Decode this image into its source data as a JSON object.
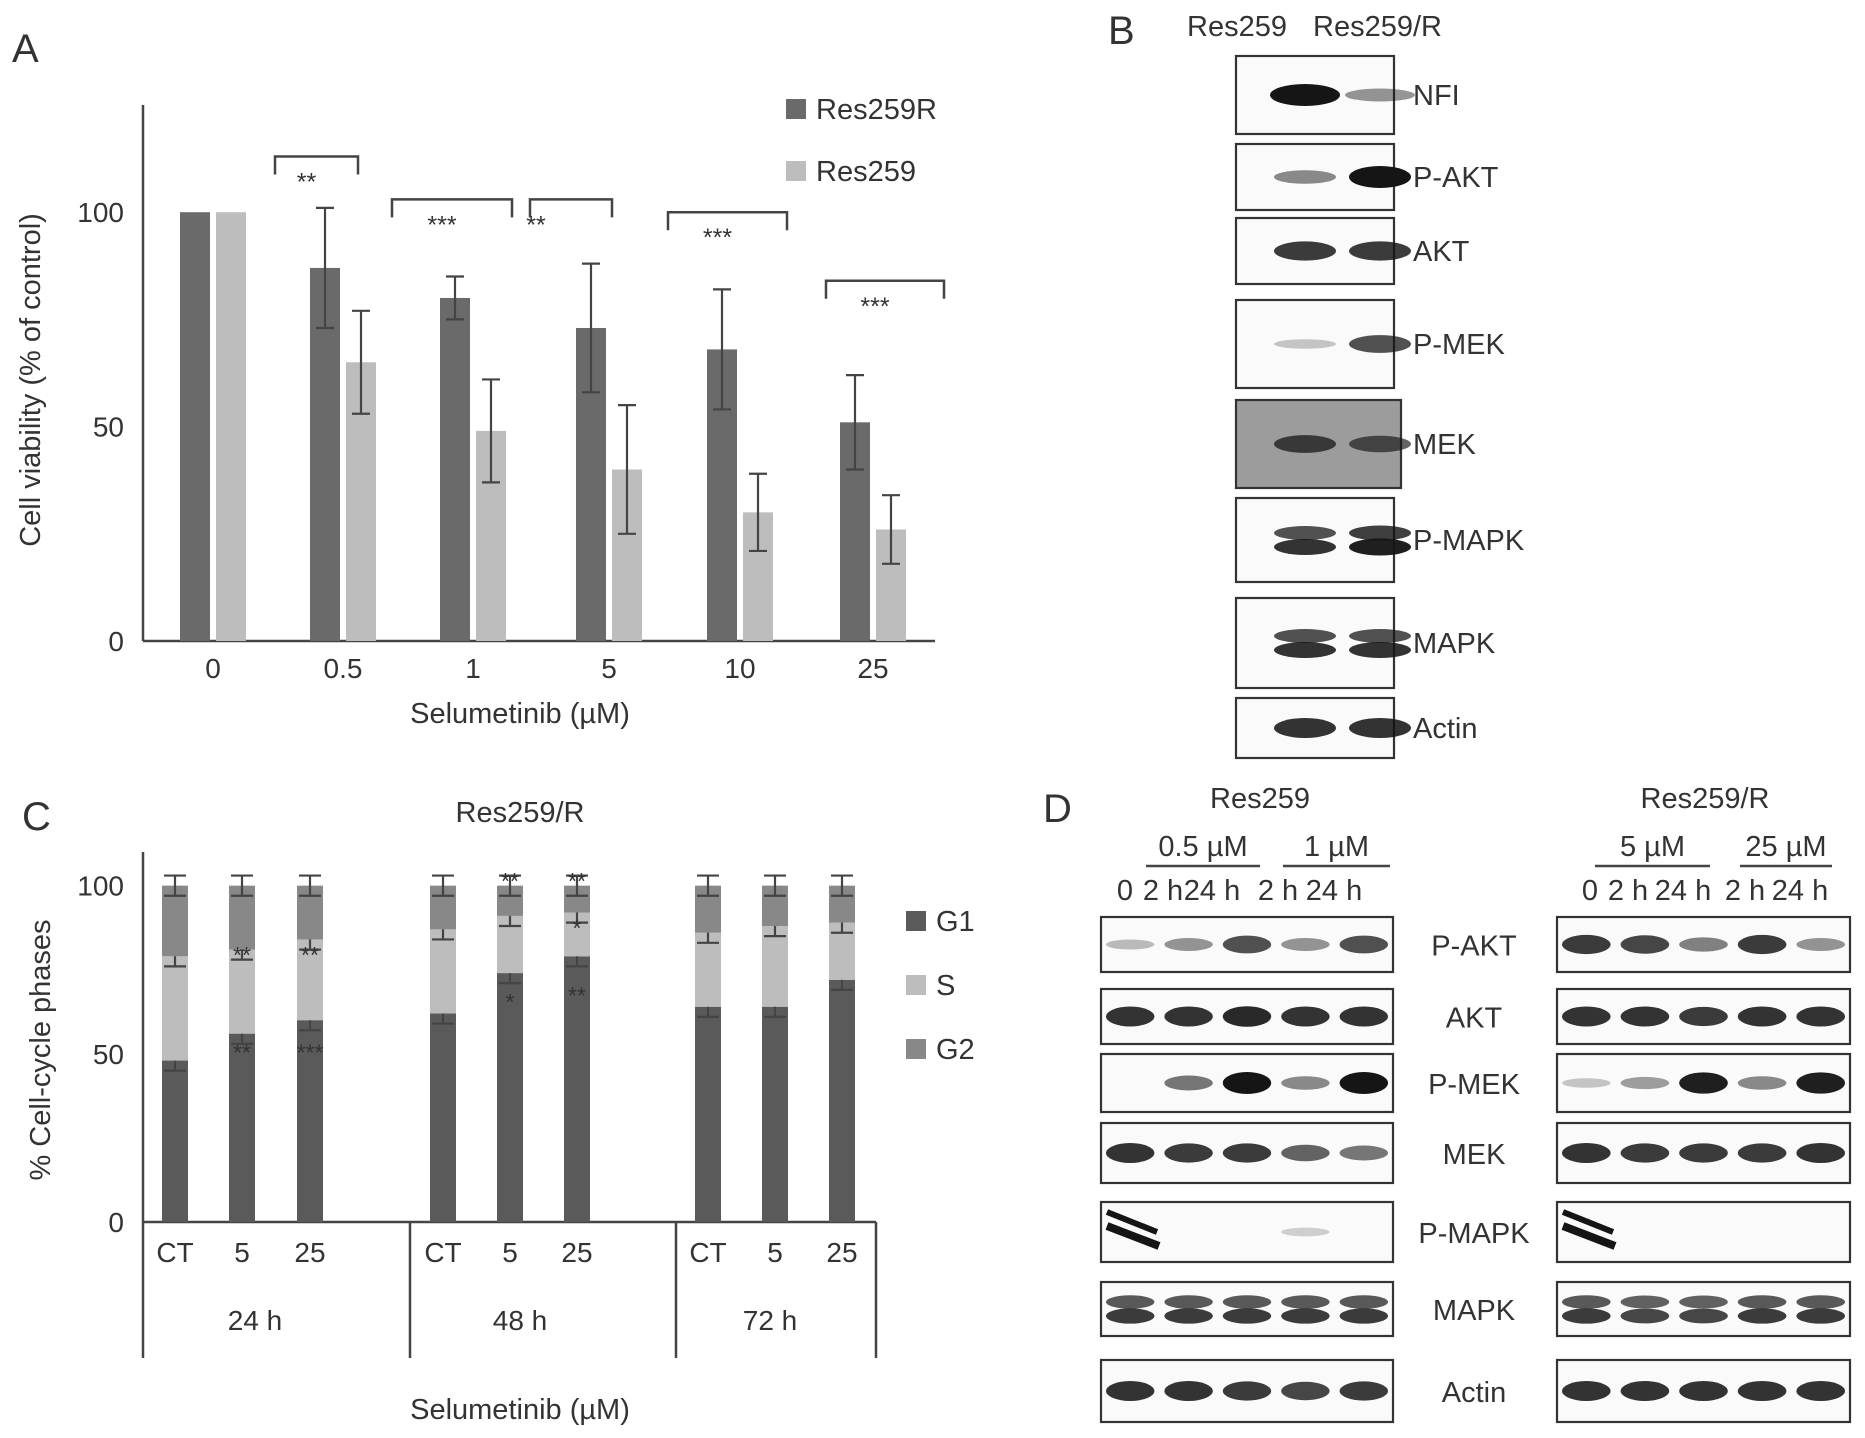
{
  "panels": {
    "A": {
      "letter": "A",
      "chart_data": {
        "type": "bar",
        "categories": [
          "0",
          "0.5",
          "1",
          "5",
          "10",
          "25"
        ],
        "series": [
          {
            "name": "Res259R",
            "color": "#6a6a6a",
            "values": [
              100,
              87,
              80,
              73,
              68,
              51
            ],
            "errors": [
              0,
              14,
              5,
              15,
              14,
              11
            ]
          },
          {
            "name": "Res259",
            "color": "#bdbdbd",
            "values": [
              100,
              65,
              49,
              40,
              30,
              26
            ],
            "errors": [
              0,
              12,
              12,
              15,
              9,
              8
            ]
          }
        ],
        "xlabel": "Selumetinib (µM)",
        "ylabel": "Cell viability (% of control)",
        "yticks": [
          0,
          50,
          100
        ],
        "ylim": [
          0,
          125
        ],
        "legend": "top-right",
        "significance": [
          {
            "from": 1,
            "to": 1,
            "label": "**",
            "y": 113
          },
          {
            "from": 2,
            "to": 3,
            "label": "***",
            "y": 103
          },
          {
            "from": 3,
            "to": 4,
            "label": "**",
            "y": 103
          },
          {
            "from": 4,
            "to": 5,
            "label": "***",
            "y": 100
          },
          {
            "from": 5,
            "to": 6,
            "label": "***",
            "y": 84
          }
        ]
      }
    },
    "B": {
      "letter": "B",
      "lanes": [
        "Res259",
        "Res259/R"
      ],
      "blots": [
        {
          "label": "NFI",
          "bands": [
            1.0,
            0.35
          ]
        },
        {
          "label": "P-AKT",
          "bands": [
            0.4,
            1.0
          ]
        },
        {
          "label": "AKT",
          "bands": [
            0.8,
            0.8
          ]
        },
        {
          "label": "P-MEK",
          "bands": [
            0.1,
            0.7
          ]
        },
        {
          "label": "MEK",
          "bands": [
            0.7,
            0.6
          ]
        },
        {
          "label": "P-MAPK",
          "bands": [
            0.85,
            0.95
          ]
        },
        {
          "label": "MAPK",
          "bands": [
            0.85,
            0.85
          ]
        },
        {
          "label": "Actin",
          "bands": [
            0.85,
            0.85
          ]
        }
      ]
    },
    "C": {
      "letter": "C",
      "chart_data": {
        "type": "bar",
        "stacked": true,
        "title": "Res259/R",
        "ylabel": "% Cell-cycle phases",
        "xlabel": "Selumetinib (µM)",
        "yticks": [
          0,
          50,
          100
        ],
        "ylim": [
          0,
          110
        ],
        "categories": [
          "CT",
          "5",
          "25",
          "CT",
          "5",
          "25",
          "CT",
          "5",
          "25"
        ],
        "groups": [
          "24 h",
          "48 h",
          "72 h"
        ],
        "series": [
          {
            "name": "G1",
            "color": "#5a5a5a",
            "values": [
              48,
              56,
              60,
              62,
              74,
              79,
              64,
              64,
              72
            ]
          },
          {
            "name": "S",
            "color": "#bdbdbd",
            "values": [
              31,
              25,
              24,
              25,
              17,
              13,
              22,
              24,
              17
            ]
          },
          {
            "name": "G2",
            "color": "#888888",
            "values": [
              21,
              19,
              16,
              13,
              9,
              8,
              14,
              12,
              11
            ]
          }
        ],
        "annotations": [
          {
            "index": 1,
            "y": 80,
            "label": "**"
          },
          {
            "index": 1,
            "y": 51,
            "label": "**"
          },
          {
            "index": 2,
            "y": 80,
            "label": "**"
          },
          {
            "index": 2,
            "y": 51,
            "label": "***"
          },
          {
            "index": 4,
            "y": 102,
            "label": "**"
          },
          {
            "index": 4,
            "y": 66,
            "label": "*"
          },
          {
            "index": 5,
            "y": 102,
            "label": "**"
          },
          {
            "index": 5,
            "y": 88,
            "label": "*"
          },
          {
            "index": 5,
            "y": 68,
            "label": "**"
          }
        ],
        "legend": "right"
      }
    },
    "D": {
      "letter": "D",
      "left": {
        "title": "Res259",
        "doses": [
          "0.5 µM",
          "1 µM"
        ],
        "lanes": [
          "0",
          "2 h",
          "24 h",
          "2 h",
          "24 h"
        ]
      },
      "right": {
        "title": "Res259/R",
        "doses": [
          "5 µM",
          "25 µM"
        ],
        "lanes": [
          "0",
          "2 h",
          "24 h",
          "2 h",
          "24 h"
        ]
      },
      "blot_labels": [
        "P-AKT",
        "AKT",
        "P-MEK",
        "MEK",
        "P-MAPK",
        "MAPK",
        "Actin"
      ],
      "left_bands": [
        [
          0.15,
          0.35,
          0.7,
          0.35,
          0.7
        ],
        [
          0.85,
          0.85,
          0.9,
          0.85,
          0.85
        ],
        [
          0.0,
          0.5,
          1.0,
          0.4,
          1.0
        ],
        [
          0.85,
          0.8,
          0.8,
          0.6,
          0.5
        ],
        [
          0.95,
          0.0,
          0.0,
          0.05,
          0.0
        ],
        [
          0.8,
          0.8,
          0.8,
          0.8,
          0.8
        ],
        [
          0.85,
          0.85,
          0.8,
          0.75,
          0.8
        ]
      ],
      "right_bands": [
        [
          0.8,
          0.75,
          0.45,
          0.8,
          0.35
        ],
        [
          0.85,
          0.85,
          0.8,
          0.85,
          0.85
        ],
        [
          0.1,
          0.3,
          0.95,
          0.4,
          0.95
        ],
        [
          0.85,
          0.8,
          0.8,
          0.8,
          0.85
        ],
        [
          0.95,
          0.0,
          0.0,
          0.0,
          0.0
        ],
        [
          0.8,
          0.75,
          0.75,
          0.8,
          0.8
        ],
        [
          0.85,
          0.85,
          0.85,
          0.85,
          0.85
        ]
      ]
    }
  }
}
